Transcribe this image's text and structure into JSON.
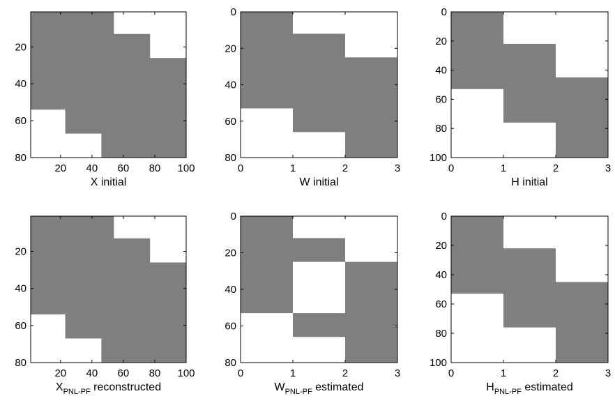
{
  "colors": {
    "filled": "#7f7f7f",
    "empty": "#ffffff",
    "frame": "#000000"
  },
  "chart_data": [
    {
      "type": "heatmap",
      "title": "",
      "xlabel": "X initial",
      "xlabel_sub": "",
      "xlabel_rest": "",
      "xlim": [
        1,
        100
      ],
      "ylim": [
        80,
        1
      ],
      "xticks": [
        20,
        40,
        60,
        80,
        100
      ],
      "yticks": [
        20,
        40,
        60,
        80
      ],
      "cells": [
        {
          "x": [
            1,
            54
          ],
          "y": [
            1,
            13
          ],
          "value": 1
        },
        {
          "x": [
            54,
            100
          ],
          "y": [
            1,
            13
          ],
          "value": 0
        },
        {
          "x": [
            1,
            77
          ],
          "y": [
            13,
            26
          ],
          "value": 1
        },
        {
          "x": [
            77,
            100
          ],
          "y": [
            13,
            26
          ],
          "value": 0
        },
        {
          "x": [
            1,
            100
          ],
          "y": [
            26,
            54
          ],
          "value": 1
        },
        {
          "x": [
            1,
            23
          ],
          "y": [
            54,
            67
          ],
          "value": 0
        },
        {
          "x": [
            23,
            100
          ],
          "y": [
            54,
            67
          ],
          "value": 1
        },
        {
          "x": [
            1,
            46
          ],
          "y": [
            67,
            80
          ],
          "value": 0
        },
        {
          "x": [
            46,
            100
          ],
          "y": [
            67,
            80
          ],
          "value": 1
        }
      ]
    },
    {
      "type": "heatmap",
      "title": "",
      "xlabel": "W initial",
      "xlabel_sub": "",
      "xlabel_rest": "",
      "xlim": [
        0,
        3
      ],
      "ylim": [
        80,
        0
      ],
      "xticks": [
        0,
        1,
        2,
        3
      ],
      "yticks": [
        0,
        20,
        40,
        60,
        80
      ],
      "cells": [
        {
          "x": [
            0,
            1
          ],
          "y": [
            0,
            53
          ],
          "value": 1
        },
        {
          "x": [
            0,
            1
          ],
          "y": [
            53,
            80
          ],
          "value": 0
        },
        {
          "x": [
            1,
            2
          ],
          "y": [
            0,
            12
          ],
          "value": 0
        },
        {
          "x": [
            1,
            2
          ],
          "y": [
            12,
            66
          ],
          "value": 1
        },
        {
          "x": [
            1,
            2
          ],
          "y": [
            66,
            80
          ],
          "value": 0
        },
        {
          "x": [
            2,
            3
          ],
          "y": [
            0,
            25
          ],
          "value": 0
        },
        {
          "x": [
            2,
            3
          ],
          "y": [
            25,
            80
          ],
          "value": 1
        }
      ]
    },
    {
      "type": "heatmap",
      "title": "",
      "xlabel": "H initial",
      "xlabel_sub": "",
      "xlabel_rest": "",
      "xlim": [
        0,
        3
      ],
      "ylim": [
        100,
        0
      ],
      "xticks": [
        0,
        1,
        2,
        3
      ],
      "yticks": [
        0,
        20,
        40,
        60,
        80,
        100
      ],
      "cells": [
        {
          "x": [
            0,
            1
          ],
          "y": [
            0,
            53
          ],
          "value": 1
        },
        {
          "x": [
            0,
            1
          ],
          "y": [
            53,
            100
          ],
          "value": 0
        },
        {
          "x": [
            1,
            2
          ],
          "y": [
            0,
            22
          ],
          "value": 0
        },
        {
          "x": [
            1,
            2
          ],
          "y": [
            22,
            76
          ],
          "value": 1
        },
        {
          "x": [
            1,
            2
          ],
          "y": [
            76,
            100
          ],
          "value": 0
        },
        {
          "x": [
            2,
            3
          ],
          "y": [
            0,
            45
          ],
          "value": 0
        },
        {
          "x": [
            2,
            3
          ],
          "y": [
            45,
            100
          ],
          "value": 1
        }
      ]
    },
    {
      "type": "heatmap",
      "title": "",
      "xlabel": "X",
      "xlabel_sub": "PNL-PF",
      "xlabel_rest": " reconstructed",
      "xlim": [
        1,
        100
      ],
      "ylim": [
        80,
        1
      ],
      "xticks": [
        20,
        40,
        60,
        80,
        100
      ],
      "yticks": [
        20,
        40,
        60,
        80
      ],
      "cells": [
        {
          "x": [
            1,
            54
          ],
          "y": [
            1,
            13
          ],
          "value": 1
        },
        {
          "x": [
            54,
            100
          ],
          "y": [
            1,
            13
          ],
          "value": 0
        },
        {
          "x": [
            1,
            77
          ],
          "y": [
            13,
            26
          ],
          "value": 1
        },
        {
          "x": [
            77,
            100
          ],
          "y": [
            13,
            26
          ],
          "value": 0
        },
        {
          "x": [
            1,
            100
          ],
          "y": [
            26,
            54
          ],
          "value": 1
        },
        {
          "x": [
            1,
            23
          ],
          "y": [
            54,
            67
          ],
          "value": 0
        },
        {
          "x": [
            23,
            100
          ],
          "y": [
            54,
            67
          ],
          "value": 1
        },
        {
          "x": [
            1,
            46
          ],
          "y": [
            67,
            80
          ],
          "value": 0
        },
        {
          "x": [
            46,
            100
          ],
          "y": [
            67,
            80
          ],
          "value": 1
        }
      ]
    },
    {
      "type": "heatmap",
      "title": "",
      "xlabel": "W",
      "xlabel_sub": "PNL-PF",
      "xlabel_rest": " estimated",
      "xlim": [
        0,
        3
      ],
      "ylim": [
        80,
        0
      ],
      "xticks": [
        0,
        1,
        2,
        3
      ],
      "yticks": [
        0,
        20,
        40,
        60,
        80
      ],
      "cells": [
        {
          "x": [
            0,
            1
          ],
          "y": [
            0,
            53
          ],
          "value": 1
        },
        {
          "x": [
            0,
            1
          ],
          "y": [
            53,
            80
          ],
          "value": 0
        },
        {
          "x": [
            1,
            2
          ],
          "y": [
            0,
            12
          ],
          "value": 0
        },
        {
          "x": [
            1,
            2
          ],
          "y": [
            12,
            25
          ],
          "value": 1
        },
        {
          "x": [
            1,
            2
          ],
          "y": [
            25,
            53
          ],
          "value": 0
        },
        {
          "x": [
            1,
            2
          ],
          "y": [
            53,
            66
          ],
          "value": 1
        },
        {
          "x": [
            1,
            2
          ],
          "y": [
            66,
            80
          ],
          "value": 0
        },
        {
          "x": [
            2,
            3
          ],
          "y": [
            0,
            25
          ],
          "value": 0
        },
        {
          "x": [
            2,
            3
          ],
          "y": [
            25,
            80
          ],
          "value": 1
        }
      ]
    },
    {
      "type": "heatmap",
      "title": "",
      "xlabel": "H",
      "xlabel_sub": "PNL-PF",
      "xlabel_rest": " estimated",
      "xlim": [
        0,
        3
      ],
      "ylim": [
        100,
        0
      ],
      "xticks": [
        0,
        1,
        2,
        3
      ],
      "yticks": [
        0,
        20,
        40,
        60,
        80,
        100
      ],
      "cells": [
        {
          "x": [
            0,
            1
          ],
          "y": [
            0,
            53
          ],
          "value": 1
        },
        {
          "x": [
            0,
            1
          ],
          "y": [
            53,
            100
          ],
          "value": 0
        },
        {
          "x": [
            1,
            2
          ],
          "y": [
            0,
            22
          ],
          "value": 0
        },
        {
          "x": [
            1,
            2
          ],
          "y": [
            22,
            76
          ],
          "value": 1
        },
        {
          "x": [
            1,
            2
          ],
          "y": [
            76,
            100
          ],
          "value": 0
        },
        {
          "x": [
            2,
            3
          ],
          "y": [
            0,
            45
          ],
          "value": 0
        },
        {
          "x": [
            2,
            3
          ],
          "y": [
            45,
            100
          ],
          "value": 1
        }
      ]
    }
  ]
}
